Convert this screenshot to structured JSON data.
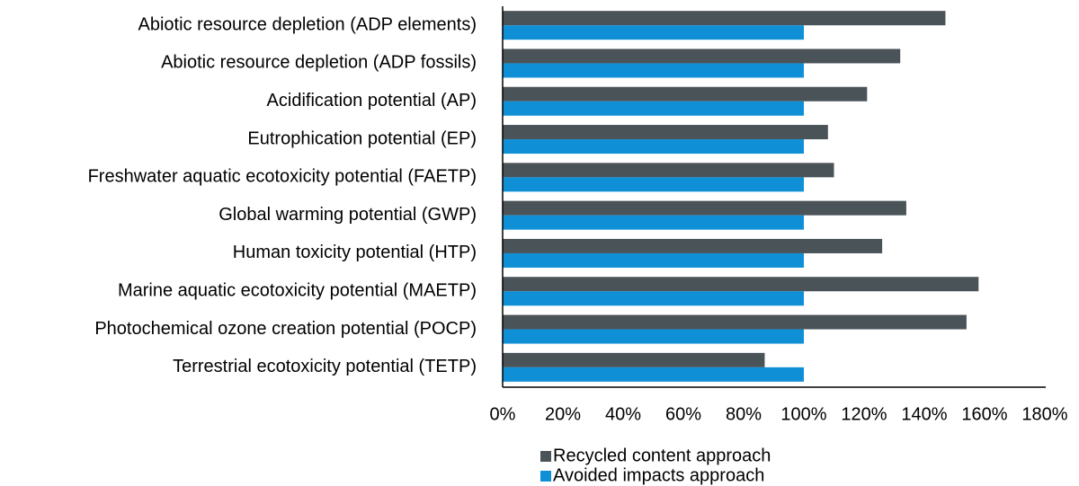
{
  "chart_data": {
    "type": "bar",
    "orientation": "horizontal",
    "categories": [
      "Abiotic resource depletion (ADP elements)",
      "Abiotic resource depletion (ADP fossils)",
      "Acidification potential (AP)",
      "Eutrophication potential (EP)",
      "Freshwater aquatic ecotoxicity potential (FAETP)",
      "Global warming potential (GWP)",
      "Human toxicity potential (HTP)",
      "Marine aquatic ecotoxicity potential (MAETP)",
      "Photochemical ozone creation potential (POCP)",
      "Terrestrial ecotoxicity potential (TETP)"
    ],
    "series": [
      {
        "name": "Recycled content approach",
        "color": "#4a5358",
        "values": [
          147,
          132,
          121,
          108,
          110,
          134,
          126,
          158,
          154,
          87
        ]
      },
      {
        "name": "Avoided impacts approach",
        "color": "#0f8fd6",
        "values": [
          100,
          100,
          100,
          100,
          100,
          100,
          100,
          100,
          100,
          100
        ]
      }
    ],
    "xlim": [
      0,
      180
    ],
    "xticks": [
      {
        "value": 0,
        "label": "0%"
      },
      {
        "value": 20,
        "label": "20%"
      },
      {
        "value": 40,
        "label": "40%"
      },
      {
        "value": 60,
        "label": "60%"
      },
      {
        "value": 80,
        "label": "80%"
      },
      {
        "value": 100,
        "label": "100%"
      },
      {
        "value": 120,
        "label": "120%"
      },
      {
        "value": 140,
        "label": "140%"
      },
      {
        "value": 160,
        "label": "160%"
      },
      {
        "value": 180,
        "label": "180%"
      }
    ],
    "grid": false,
    "legend": "bottom"
  }
}
